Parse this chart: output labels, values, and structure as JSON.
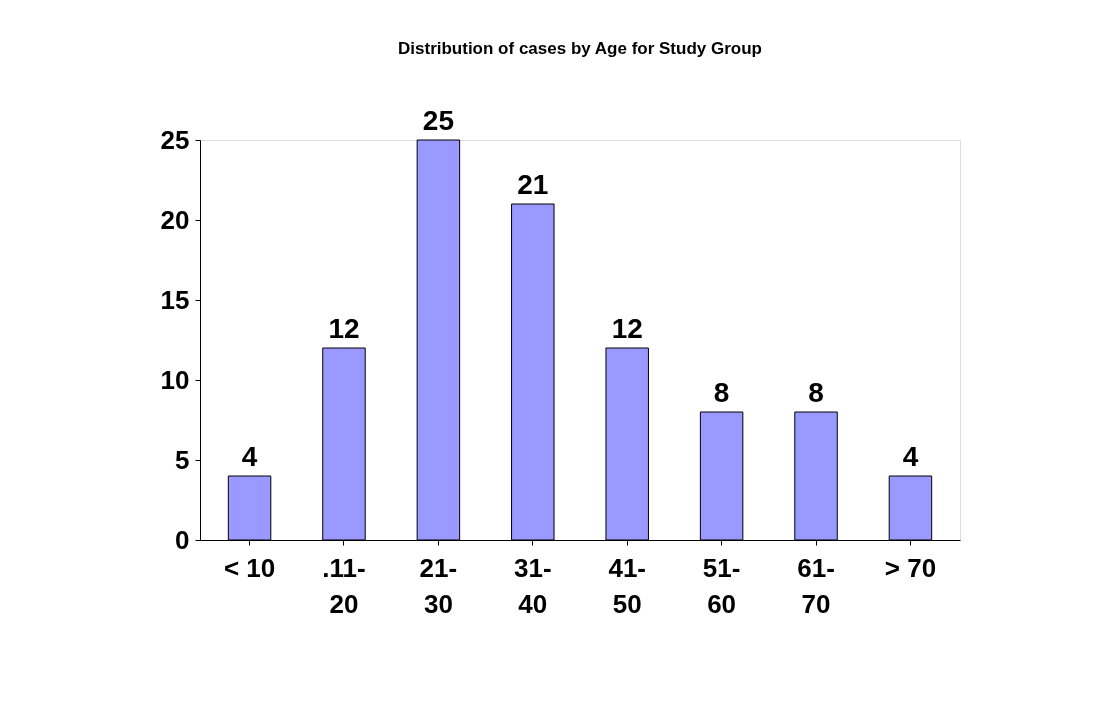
{
  "chart_data": {
    "type": "bar",
    "title": "Distribution of cases by Age for Study Group",
    "categories": [
      "< 10",
      ".11-20",
      "21-30",
      "31-40",
      "41-50",
      "51-60",
      "61-70",
      "> 70"
    ],
    "values": [
      4,
      12,
      25,
      21,
      12,
      8,
      8,
      4
    ],
    "color": "#9999ff",
    "ylim": [
      0,
      25
    ],
    "yticks": [
      0,
      5,
      10,
      15,
      20,
      25
    ],
    "grid": false,
    "data_labels": true
  }
}
